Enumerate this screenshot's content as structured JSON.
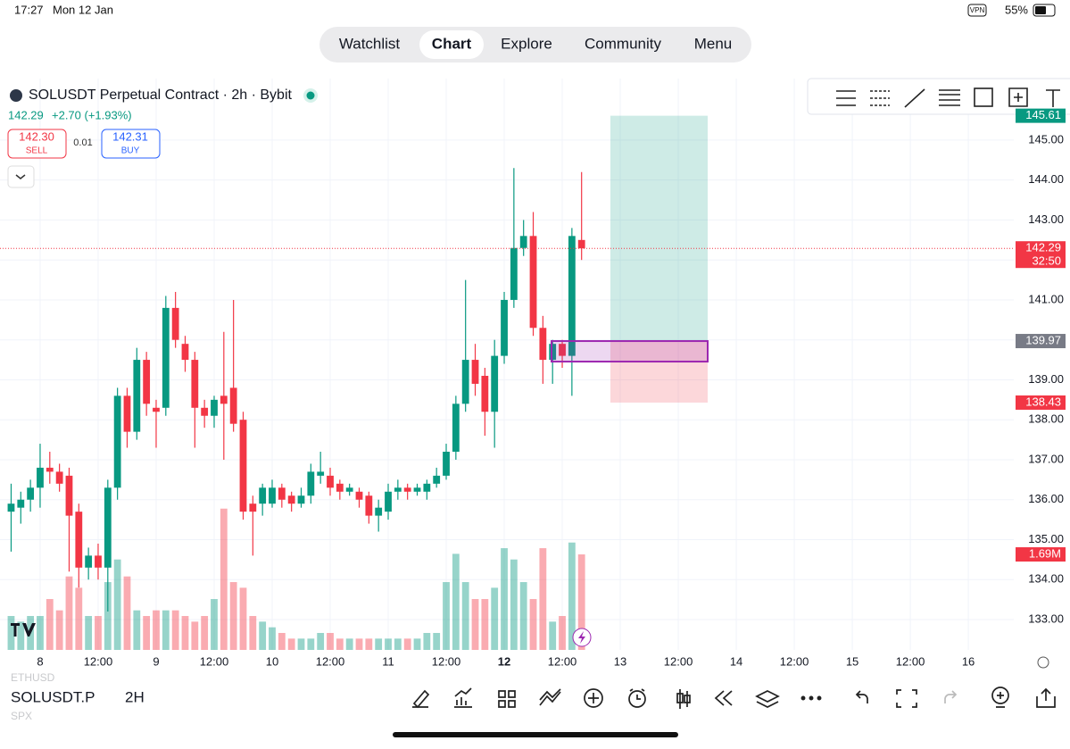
{
  "status_bar": {
    "time": "17:27",
    "date": "Mon 12 Jan",
    "vpn": "VPN",
    "battery": "55%"
  },
  "nav": {
    "tabs": [
      "Watchlist",
      "Chart",
      "Explore",
      "Community",
      "Menu"
    ],
    "active": 1
  },
  "header": {
    "title": "SOLUSDT Perpetual Contract · 2h · Bybit",
    "price": "142.29",
    "change": "+2.70 (+1.93%)",
    "sell_price": "142.30",
    "sell_label": "SELL",
    "spread": "0.01",
    "buy_price": "142.31",
    "buy_label": "BUY"
  },
  "chart": {
    "type": "candlestick",
    "ylim": [
      132.24,
      146.54
    ],
    "yticks": [
      {
        "value": 133,
        "label": "133.00"
      },
      {
        "value": 134,
        "label": "134.00"
      },
      {
        "value": 135,
        "label": "135.00"
      },
      {
        "value": 136,
        "label": "136.00"
      },
      {
        "value": 137,
        "label": "137.00"
      },
      {
        "value": 138,
        "label": "138.00"
      },
      {
        "value": 139,
        "label": "139.00"
      },
      {
        "value": 140,
        "label": "140.00"
      },
      {
        "value": 141,
        "label": "141.00"
      },
      {
        "value": 142,
        "label": "142.00"
      },
      {
        "value": 143,
        "label": "143.00"
      },
      {
        "value": 144,
        "label": "144.00"
      },
      {
        "value": 145,
        "label": "145.00"
      }
    ],
    "xlim": [
      -1.15,
      103.7
    ],
    "xticks": [
      {
        "value": 3,
        "label": "8"
      },
      {
        "value": 9,
        "label": "12:00"
      },
      {
        "value": 15,
        "label": "9"
      },
      {
        "value": 21,
        "label": "12:00"
      },
      {
        "value": 27,
        "label": "10"
      },
      {
        "value": 33,
        "label": "12:00"
      },
      {
        "value": 39,
        "label": "11"
      },
      {
        "value": 45,
        "label": "12:00"
      },
      {
        "value": 51,
        "label": "12"
      },
      {
        "value": 57,
        "label": "12:00"
      },
      {
        "value": 63,
        "label": "13"
      },
      {
        "value": 69,
        "label": "12:00"
      },
      {
        "value": 75,
        "label": "14"
      },
      {
        "value": 81,
        "label": "12:00"
      },
      {
        "value": 87,
        "label": "15"
      },
      {
        "value": 93,
        "label": "12:00"
      },
      {
        "value": 99,
        "label": "16"
      }
    ],
    "up_color": "#089981",
    "down_color": "#f23645",
    "open": [
      135.7,
      135.8,
      136.0,
      136.3,
      136.8,
      136.7,
      136.6,
      135.7,
      134.3,
      134.6,
      134.3,
      136.3,
      138.6,
      137.7,
      139.5,
      138.3,
      138.3,
      140.8,
      139.9,
      139.5,
      138.3,
      138.1,
      138.6,
      138.8,
      138.0,
      135.9,
      135.9,
      135.9,
      136.3,
      136.1,
      135.9,
      136.1,
      136.6,
      136.6,
      136.4,
      136.2,
      136.2,
      136.1,
      135.6,
      135.7,
      136.2,
      136.3,
      136.2,
      136.2,
      136.4,
      136.6,
      137.2,
      138.4,
      139.5,
      139.1,
      138.2,
      139.6,
      141.0,
      142.3,
      142.6,
      140.3,
      139.5,
      139.9,
      139.6,
      142.5
    ],
    "high": [
      136.4,
      136.2,
      136.5,
      137.4,
      137.2,
      136.9,
      136.8,
      135.9,
      134.8,
      134.9,
      136.5,
      138.8,
      138.8,
      139.8,
      139.7,
      138.5,
      141.1,
      141.2,
      140.1,
      139.7,
      138.5,
      138.6,
      140.2,
      141.0,
      138.2,
      136.1,
      136.4,
      136.5,
      136.4,
      136.2,
      136.3,
      136.9,
      137.2,
      136.8,
      136.5,
      136.4,
      136.3,
      136.2,
      136.0,
      136.4,
      136.5,
      136.4,
      136.4,
      136.5,
      136.8,
      137.4,
      138.6,
      141.5,
      139.9,
      139.3,
      140.0,
      141.2,
      144.3,
      143.0,
      143.2,
      140.6,
      140.0,
      140.0,
      142.8,
      144.2
    ],
    "low": [
      134.7,
      135.4,
      135.7,
      135.8,
      136.4,
      136.2,
      134.2,
      133.8,
      134.0,
      134.0,
      133.2,
      136.0,
      137.3,
      137.5,
      138.1,
      137.3,
      138.1,
      139.8,
      139.2,
      137.3,
      137.8,
      137.8,
      137.0,
      137.7,
      135.5,
      134.6,
      135.6,
      135.8,
      135.8,
      135.7,
      135.8,
      135.9,
      136.4,
      136.1,
      136.0,
      136.1,
      135.8,
      135.4,
      135.2,
      135.5,
      136.0,
      136.0,
      136.1,
      136.0,
      136.3,
      136.5,
      137.0,
      138.2,
      138.6,
      137.6,
      137.3,
      139.4,
      140.8,
      142.1,
      140.1,
      138.9,
      138.9,
      139.3,
      138.6,
      142.0
    ],
    "close": [
      135.9,
      136.0,
      136.3,
      136.8,
      136.7,
      136.4,
      135.6,
      134.3,
      134.6,
      134.3,
      136.3,
      138.6,
      137.7,
      139.5,
      138.4,
      138.2,
      140.8,
      140.0,
      139.5,
      138.3,
      138.1,
      138.5,
      138.4,
      137.9,
      135.7,
      135.7,
      136.3,
      136.3,
      136.0,
      135.9,
      136.1,
      136.7,
      136.7,
      136.3,
      136.2,
      136.3,
      136.0,
      135.6,
      135.8,
      136.2,
      136.3,
      136.2,
      136.3,
      136.4,
      136.6,
      137.2,
      138.4,
      139.5,
      138.9,
      138.2,
      139.6,
      141.0,
      142.3,
      142.6,
      140.3,
      139.5,
      139.9,
      139.6,
      142.6,
      142.29
    ],
    "volume_lim": [
      0,
      10.11
    ],
    "volume": [
      0.6,
      0.5,
      0.6,
      0.6,
      0.9,
      0.7,
      1.3,
      1.1,
      0.6,
      0.6,
      1.2,
      1.6,
      1.3,
      0.7,
      0.6,
      0.7,
      0.7,
      0.7,
      0.6,
      0.5,
      0.6,
      0.9,
      2.5,
      1.2,
      1.1,
      0.6,
      0.5,
      0.4,
      0.3,
      0.2,
      0.2,
      0.2,
      0.3,
      0.3,
      0.2,
      0.2,
      0.2,
      0.2,
      0.2,
      0.2,
      0.2,
      0.2,
      0.2,
      0.3,
      0.3,
      1.2,
      1.7,
      1.2,
      0.9,
      0.9,
      1.1,
      1.8,
      1.6,
      1.2,
      0.9,
      1.8,
      0.5,
      0.6,
      1.9,
      1.69
    ],
    "volume_last_label": "1.69M",
    "last_price": 142.29,
    "countdown": "32:50",
    "position": {
      "take_profit": 145.61,
      "entry": 139.97,
      "stop": 138.43
    }
  },
  "bottom_bar": {
    "symbol": "SOLUSDT.P",
    "interval": "2H",
    "prev_symbol": "ETHUSD",
    "next_symbol": "SPX"
  }
}
